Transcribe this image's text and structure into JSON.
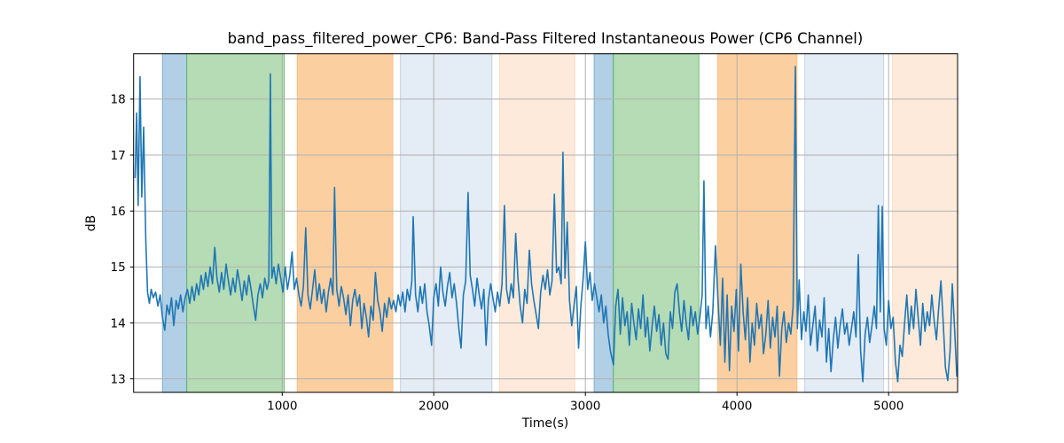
{
  "chart_data": {
    "type": "line",
    "title": "band_pass_filtered_power_CP6: Band-Pass Filtered Instantaneous Power (CP6 Channel)",
    "xlabel": "Time(s)",
    "ylabel": "dB",
    "xlim": [
      20,
      5455
    ],
    "ylim": [
      12.76,
      18.81
    ],
    "x_ticks": [
      1000,
      2000,
      3000,
      4000,
      5000
    ],
    "y_ticks": [
      13,
      14,
      15,
      16,
      17,
      18
    ],
    "grid": true,
    "grid_color": "#b0b0b0",
    "line_color": "#1f77b4",
    "spine_color": "#000000",
    "bands": [
      {
        "name": "band-blue-1",
        "start": 210,
        "end": 371,
        "color": "#b1cfe5",
        "edge": "rgba(31,119,180,0.45)"
      },
      {
        "name": "band-green-1",
        "start": 371,
        "end": 1014,
        "color": "#b5dcb5",
        "edge": "rgba(44,160,44,0.55)"
      },
      {
        "name": "band-orange-1",
        "start": 1098,
        "end": 1731,
        "color": "#fccfa1",
        "edge": "rgba(255,127,14,0.3)"
      },
      {
        "name": "band-lightblue-1",
        "start": 1780,
        "end": 2384,
        "color": "#e4ecf6",
        "edge": "rgba(100,130,180,0.3)"
      },
      {
        "name": "band-peach-1",
        "start": 2433,
        "end": 2930,
        "color": "#fdeada",
        "edge": "rgba(255,127,14,0.2)"
      },
      {
        "name": "band-blue-2",
        "start": 3057,
        "end": 3184,
        "color": "#b1cfe5",
        "edge": "rgba(31,119,180,0.45)"
      },
      {
        "name": "band-green-2",
        "start": 3184,
        "end": 3749,
        "color": "#b5dcb5",
        "edge": "rgba(44,160,44,0.55)"
      },
      {
        "name": "band-orange-2",
        "start": 3871,
        "end": 4396,
        "color": "#fccfa1",
        "edge": "rgba(255,127,14,0.3)"
      },
      {
        "name": "band-lightblue-2",
        "start": 4447,
        "end": 4967,
        "color": "#e4ecf6",
        "edge": "rgba(100,130,180,0.3)"
      },
      {
        "name": "band-peach-2",
        "start": 5026,
        "end": 5455,
        "color": "#fdeada",
        "edge": "rgba(255,127,14,0.2)"
      }
    ],
    "series": [
      {
        "name": "band_pass_filtered_power_CP6",
        "x": [
          30,
          40,
          50,
          62,
          74,
          86,
          100,
          112,
          124,
          136,
          150,
          165,
          180,
          195,
          210,
          225,
          240,
          255,
          270,
          285,
          300,
          315,
          330,
          345,
          360,
          375,
          390,
          405,
          420,
          435,
          450,
          465,
          480,
          495,
          510,
          525,
          540,
          555,
          570,
          585,
          600,
          615,
          630,
          645,
          660,
          675,
          690,
          705,
          720,
          735,
          750,
          765,
          780,
          795,
          810,
          825,
          840,
          855,
          870,
          885,
          900,
          912,
          922,
          932,
          945,
          960,
          975,
          990,
          1005,
          1020,
          1035,
          1050,
          1065,
          1080,
          1095,
          1110,
          1125,
          1140,
          1155,
          1170,
          1185,
          1200,
          1215,
          1230,
          1245,
          1260,
          1275,
          1290,
          1305,
          1320,
          1335,
          1345,
          1360,
          1375,
          1390,
          1405,
          1420,
          1435,
          1450,
          1465,
          1480,
          1495,
          1510,
          1525,
          1540,
          1555,
          1570,
          1585,
          1600,
          1615,
          1630,
          1645,
          1660,
          1675,
          1690,
          1705,
          1720,
          1735,
          1750,
          1765,
          1780,
          1795,
          1810,
          1825,
          1840,
          1855,
          1864,
          1880,
          1895,
          1910,
          1925,
          1940,
          1955,
          1970,
          1985,
          2000,
          2015,
          2030,
          2045,
          2060,
          2075,
          2090,
          2105,
          2120,
          2135,
          2150,
          2165,
          2180,
          2195,
          2210,
          2226,
          2240,
          2255,
          2270,
          2285,
          2300,
          2315,
          2330,
          2345,
          2360,
          2375,
          2390,
          2405,
          2420,
          2435,
          2450,
          2466,
          2480,
          2495,
          2510,
          2525,
          2540,
          2555,
          2570,
          2585,
          2600,
          2615,
          2630,
          2645,
          2660,
          2675,
          2690,
          2705,
          2720,
          2735,
          2750,
          2765,
          2780,
          2795,
          2810,
          2825,
          2840,
          2852,
          2865,
          2880,
          2895,
          2910,
          2925,
          2940,
          2955,
          2970,
          2985,
          3000,
          3015,
          3030,
          3045,
          3060,
          3075,
          3090,
          3105,
          3120,
          3135,
          3150,
          3165,
          3185,
          3200,
          3215,
          3230,
          3245,
          3260,
          3275,
          3290,
          3305,
          3320,
          3335,
          3350,
          3365,
          3380,
          3395,
          3410,
          3425,
          3440,
          3455,
          3470,
          3485,
          3500,
          3515,
          3530,
          3545,
          3560,
          3575,
          3590,
          3605,
          3620,
          3635,
          3650,
          3665,
          3680,
          3695,
          3710,
          3725,
          3740,
          3755,
          3770,
          3782,
          3795,
          3810,
          3825,
          3840,
          3858,
          3875,
          3890,
          3905,
          3920,
          3935,
          3950,
          3965,
          3980,
          3995,
          4010,
          4025,
          4040,
          4055,
          4070,
          4085,
          4100,
          4115,
          4130,
          4145,
          4160,
          4175,
          4190,
          4205,
          4220,
          4235,
          4250,
          4265,
          4280,
          4295,
          4310,
          4325,
          4340,
          4355,
          4370,
          4385,
          4398,
          4410,
          4425,
          4440,
          4455,
          4470,
          4485,
          4500,
          4515,
          4530,
          4545,
          4560,
          4575,
          4590,
          4605,
          4620,
          4635,
          4650,
          4665,
          4680,
          4695,
          4710,
          4725,
          4740,
          4755,
          4770,
          4785,
          4800,
          4815,
          4830,
          4845,
          4860,
          4875,
          4890,
          4905,
          4920,
          4932,
          4945,
          4958,
          4970,
          4985,
          5000,
          5015,
          5030,
          5045,
          5060,
          5075,
          5090,
          5105,
          5120,
          5135,
          5150,
          5165,
          5180,
          5195,
          5210,
          5225,
          5240,
          5255,
          5270,
          5285,
          5300,
          5315,
          5330,
          5345,
          5360,
          5375,
          5390,
          5405,
          5420,
          5435,
          5450
        ],
        "y": [
          16.6,
          17.75,
          16.1,
          18.4,
          16.25,
          17.5,
          15.5,
          14.55,
          14.35,
          14.6,
          14.45,
          14.55,
          14.3,
          14.5,
          14.1,
          13.87,
          14.32,
          14.15,
          14.45,
          13.95,
          14.4,
          14.25,
          14.5,
          14.2,
          14.45,
          14.6,
          14.35,
          14.65,
          14.4,
          14.7,
          14.5,
          14.85,
          14.6,
          14.9,
          14.65,
          15.0,
          14.7,
          15.35,
          14.8,
          14.55,
          14.9,
          14.6,
          15.05,
          14.75,
          14.5,
          14.8,
          14.55,
          14.95,
          14.7,
          14.4,
          14.75,
          14.5,
          14.85,
          14.6,
          14.3,
          14.05,
          14.5,
          14.7,
          14.45,
          14.8,
          14.6,
          14.75,
          18.45,
          14.8,
          15.0,
          14.7,
          15.05,
          14.8,
          14.55,
          15.0,
          14.6,
          14.85,
          15.27,
          14.6,
          14.8,
          14.5,
          14.3,
          14.65,
          15.7,
          14.5,
          14.25,
          14.6,
          14.95,
          14.4,
          14.7,
          14.35,
          14.6,
          14.2,
          14.55,
          14.8,
          14.5,
          16.42,
          14.6,
          14.3,
          14.65,
          14.45,
          14.15,
          14.5,
          13.95,
          14.4,
          14.6,
          14.3,
          14.5,
          13.9,
          14.35,
          14.1,
          13.75,
          14.3,
          14.05,
          14.9,
          14.4,
          14.2,
          13.85,
          14.35,
          14.1,
          14.45,
          14.25,
          14.4,
          14.2,
          14.5,
          14.3,
          14.55,
          14.2,
          14.6,
          14.4,
          14.75,
          15.9,
          14.5,
          14.2,
          14.65,
          14.35,
          14.7,
          14.2,
          13.95,
          13.6,
          14.45,
          14.7,
          14.3,
          15.0,
          14.55,
          14.3,
          14.65,
          14.9,
          14.45,
          14.7,
          14.35,
          13.9,
          13.55,
          14.5,
          14.75,
          16.33,
          14.85,
          14.6,
          14.3,
          14.8,
          14.5,
          14.25,
          14.6,
          13.6,
          14.4,
          14.7,
          14.45,
          14.2,
          14.55,
          14.3,
          14.7,
          16.1,
          14.6,
          14.35,
          14.7,
          14.45,
          15.6,
          14.8,
          14.3,
          14.0,
          14.6,
          14.35,
          15.3,
          14.7,
          14.4,
          14.15,
          13.9,
          14.55,
          14.85,
          14.6,
          14.95,
          14.5,
          14.75,
          16.3,
          14.9,
          15.0,
          14.7,
          17.05,
          14.8,
          15.8,
          14.4,
          13.95,
          14.3,
          14.65,
          13.55,
          14.3,
          14.8,
          15.45,
          14.6,
          14.9,
          14.4,
          14.7,
          14.45,
          14.2,
          14.5,
          14.0,
          14.3,
          13.8,
          13.5,
          13.25,
          14.3,
          14.6,
          13.8,
          14.45,
          13.95,
          14.2,
          13.6,
          14.35,
          14.0,
          13.7,
          14.25,
          13.9,
          14.5,
          13.75,
          14.1,
          13.5,
          13.95,
          14.3,
          13.85,
          14.15,
          13.6,
          14.0,
          13.45,
          13.35,
          14.2,
          13.9,
          14.55,
          14.7,
          14.2,
          13.85,
          14.4,
          14.0,
          13.7,
          14.3,
          13.95,
          14.2,
          13.8,
          14.1,
          14.5,
          16.54,
          13.9,
          14.3,
          13.75,
          14.2,
          15.38,
          14.4,
          13.6,
          14.8,
          13.3,
          14.5,
          13.15,
          14.3,
          13.85,
          14.6,
          13.5,
          15.05,
          14.2,
          13.7,
          14.45,
          13.3,
          14.0,
          13.6,
          14.35,
          13.9,
          14.15,
          13.45,
          13.8,
          14.4,
          13.55,
          14.1,
          13.75,
          14.3,
          13.05,
          13.9,
          14.2,
          13.65,
          14.0,
          13.8,
          14.3,
          18.58,
          13.9,
          14.77,
          13.7,
          14.2,
          13.85,
          14.5,
          13.6,
          13.95,
          14.3,
          13.5,
          14.05,
          13.75,
          14.45,
          13.3,
          13.9,
          13.13,
          13.7,
          14.1,
          13.55,
          13.95,
          14.25,
          13.8,
          14.0,
          13.6,
          13.9,
          14.2,
          13.75,
          15.22,
          13.5,
          12.95,
          13.8,
          14.1,
          13.65,
          13.95,
          14.3,
          13.9,
          16.1,
          14.2,
          16.08,
          13.9,
          13.6,
          14.4,
          13.9,
          14.1,
          13.3,
          12.95,
          13.6,
          13.4,
          14.0,
          14.5,
          13.8,
          14.3,
          13.9,
          14.6,
          14.1,
          13.6,
          14.35,
          13.85,
          14.2,
          13.95,
          14.5,
          14.05,
          13.7,
          14.25,
          14.75,
          14.0,
          13.2,
          12.97,
          13.5,
          14.7,
          13.9,
          13.05
        ]
      }
    ]
  }
}
